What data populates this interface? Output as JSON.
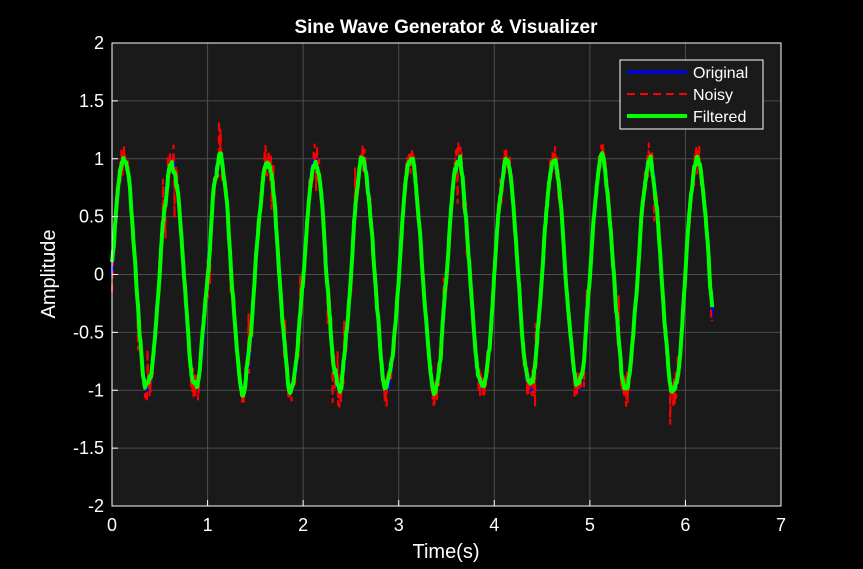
{
  "chart_data": {
    "type": "line",
    "title": "Sine Wave Generator & Visualizer",
    "xlabel": "Time(s)",
    "ylabel": "Amplitude",
    "xlim": [
      0,
      7
    ],
    "ylim": [
      -2,
      2
    ],
    "xticks": [
      "0",
      "1",
      "2",
      "3",
      "4",
      "5",
      "6",
      "7"
    ],
    "yticks": [
      "2",
      "1.5",
      "1",
      "0.5",
      "0",
      "-0.5",
      "-1",
      "-1.5",
      "-2"
    ],
    "grid": true,
    "legend_position": "top-right",
    "series": [
      {
        "name": "Original",
        "color": "#0000ff",
        "style": "solid",
        "function": "sin(2*pi*2*t)",
        "frequency_hz": 2,
        "amplitude": 1,
        "t_range": [
          0,
          6.28
        ]
      },
      {
        "name": "Noisy",
        "color": "#ff0000",
        "style": "dashed",
        "function": "sin(2*pi*2*t) + noise",
        "noise_amplitude": 0.15,
        "min": -1.55,
        "max": 1.55,
        "t_range": [
          0,
          6.28
        ]
      },
      {
        "name": "Filtered",
        "color": "#00ff00",
        "style": "solid",
        "function": "smoothed(noisy)",
        "t_range": [
          0,
          6.28
        ]
      }
    ]
  }
}
